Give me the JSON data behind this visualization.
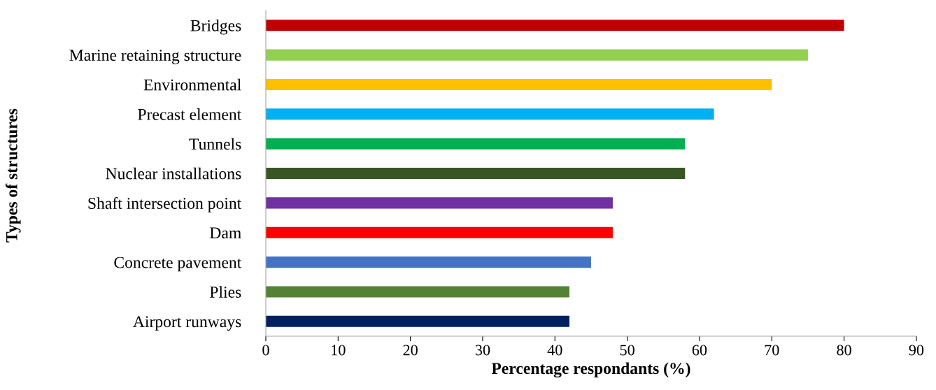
{
  "chart_data": {
    "type": "bar",
    "orientation": "horizontal",
    "xlabel": "Percentage respondants (%)",
    "ylabel": "Types of structures",
    "categories": [
      "Bridges",
      "Marine retaining structure",
      "Environmental",
      "Precast element",
      "Tunnels",
      "Nuclear installations",
      "Shaft intersection point",
      "Dam",
      "Concrete pavement",
      "Plies",
      "Airport runways"
    ],
    "values": [
      80,
      75,
      70,
      62,
      58,
      58,
      48,
      48,
      45,
      42,
      42
    ],
    "colors": [
      "#c00000",
      "#92d050",
      "#ffc000",
      "#00b0f0",
      "#00b050",
      "#375623",
      "#7030a0",
      "#ff0000",
      "#4472c4",
      "#548235",
      "#002060"
    ],
    "xlim": [
      0,
      90
    ],
    "xticks": [
      0,
      10,
      20,
      30,
      40,
      50,
      60,
      70,
      80,
      90
    ],
    "grid": false,
    "legend": false
  }
}
